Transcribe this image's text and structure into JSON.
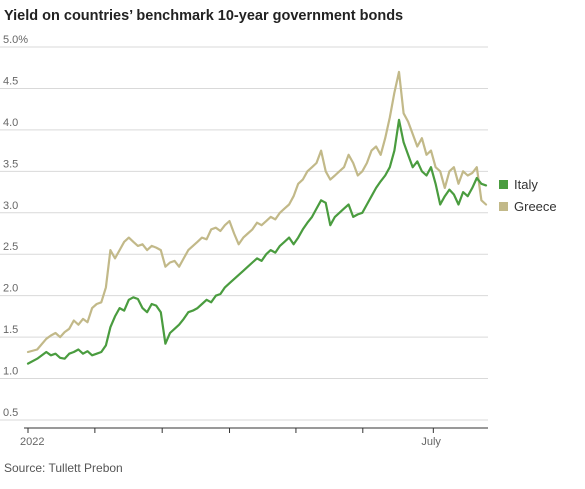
{
  "title": "Yield on countries’ benchmark 10-year government bonds",
  "source": "Source: Tullett Prebon",
  "colors": {
    "italy": "#4a9c3f",
    "greece": "#c2b989",
    "grid": "#d9d9d9",
    "axis": "#333333"
  },
  "chart_data": {
    "type": "line",
    "title": "Yield on countries’ benchmark 10-year government bonds",
    "ylim": [
      0.5,
      5.0
    ],
    "xlim": [
      0,
      100
    ],
    "y_ticks": [
      {
        "value": 5.0,
        "label": "5.0%"
      },
      {
        "value": 4.5,
        "label": "4.5"
      },
      {
        "value": 4.0,
        "label": "4.0"
      },
      {
        "value": 3.5,
        "label": "3.5"
      },
      {
        "value": 3.0,
        "label": "3.0"
      },
      {
        "value": 2.5,
        "label": "2.5"
      },
      {
        "value": 2.0,
        "label": "2.0"
      },
      {
        "value": 1.5,
        "label": "1.5"
      },
      {
        "value": 1.0,
        "label": "1.0"
      },
      {
        "value": 0.5,
        "label": "0.5"
      }
    ],
    "x_ticks": [
      {
        "x": 0,
        "label": "2022"
      },
      {
        "x": 14.6
      },
      {
        "x": 29.3
      },
      {
        "x": 44.0
      },
      {
        "x": 58.5
      },
      {
        "x": 73.1
      },
      {
        "x": 88.5,
        "label": "July"
      }
    ],
    "legend_position": "right",
    "series": [
      {
        "name": "Italy",
        "x": [
          0,
          2,
          4,
          5,
          6,
          7,
          8,
          9,
          10,
          11,
          12,
          13,
          14,
          15,
          16,
          17,
          18,
          19,
          20,
          21,
          22,
          23,
          24,
          25,
          26,
          27,
          28,
          29,
          30,
          31,
          32,
          33,
          34,
          35,
          36,
          37,
          38,
          39,
          40,
          41,
          42,
          43,
          44,
          45,
          46,
          47,
          48,
          49,
          50,
          51,
          52,
          53,
          54,
          55,
          56,
          57,
          58,
          59,
          60,
          61,
          62,
          63,
          64,
          65,
          66,
          67,
          68,
          69,
          70,
          71,
          72,
          73,
          74,
          75,
          76,
          77,
          78,
          79,
          80,
          81,
          82,
          83,
          84,
          85,
          86,
          87,
          88,
          89,
          90,
          91,
          92,
          93,
          94,
          95,
          96,
          97,
          98,
          99,
          100
        ],
        "values": [
          1.18,
          1.24,
          1.32,
          1.28,
          1.3,
          1.25,
          1.24,
          1.3,
          1.32,
          1.35,
          1.3,
          1.33,
          1.28,
          1.3,
          1.32,
          1.4,
          1.62,
          1.75,
          1.85,
          1.82,
          1.95,
          1.98,
          1.96,
          1.85,
          1.8,
          1.9,
          1.88,
          1.8,
          1.42,
          1.55,
          1.6,
          1.65,
          1.72,
          1.8,
          1.82,
          1.85,
          1.9,
          1.95,
          1.92,
          2.0,
          2.02,
          2.1,
          2.15,
          2.2,
          2.25,
          2.3,
          2.35,
          2.4,
          2.45,
          2.42,
          2.5,
          2.55,
          2.52,
          2.6,
          2.65,
          2.7,
          2.62,
          2.7,
          2.8,
          2.88,
          2.95,
          3.05,
          3.15,
          3.12,
          2.85,
          2.95,
          3.0,
          3.05,
          3.1,
          2.95,
          2.98,
          3.0,
          3.1,
          3.2,
          3.3,
          3.38,
          3.45,
          3.55,
          3.75,
          4.12,
          3.85,
          3.7,
          3.55,
          3.62,
          3.5,
          3.45,
          3.55,
          3.35,
          3.1,
          3.2,
          3.28,
          3.22,
          3.1,
          3.25,
          3.2,
          3.3,
          3.42,
          3.35,
          3.33
        ]
      },
      {
        "name": "Greece",
        "x": [
          0,
          2,
          4,
          5,
          6,
          7,
          8,
          9,
          10,
          11,
          12,
          13,
          14,
          15,
          16,
          17,
          18,
          19,
          20,
          21,
          22,
          23,
          24,
          25,
          26,
          27,
          28,
          29,
          30,
          31,
          32,
          33,
          34,
          35,
          36,
          37,
          38,
          39,
          40,
          41,
          42,
          43,
          44,
          45,
          46,
          47,
          48,
          49,
          50,
          51,
          52,
          53,
          54,
          55,
          56,
          57,
          58,
          59,
          60,
          61,
          62,
          63,
          64,
          65,
          66,
          67,
          68,
          69,
          70,
          71,
          72,
          73,
          74,
          75,
          76,
          77,
          78,
          79,
          80,
          81,
          82,
          83,
          84,
          85,
          86,
          87,
          88,
          89,
          90,
          91,
          92,
          93,
          94,
          95,
          96,
          97,
          98,
          99,
          100
        ],
        "values": [
          1.32,
          1.35,
          1.48,
          1.52,
          1.55,
          1.5,
          1.56,
          1.6,
          1.7,
          1.65,
          1.72,
          1.68,
          1.85,
          1.9,
          1.92,
          2.1,
          2.55,
          2.45,
          2.55,
          2.65,
          2.7,
          2.65,
          2.6,
          2.62,
          2.55,
          2.6,
          2.58,
          2.55,
          2.35,
          2.4,
          2.42,
          2.35,
          2.45,
          2.55,
          2.6,
          2.65,
          2.7,
          2.68,
          2.8,
          2.82,
          2.78,
          2.85,
          2.9,
          2.75,
          2.62,
          2.7,
          2.75,
          2.8,
          2.88,
          2.85,
          2.9,
          2.95,
          2.92,
          3.0,
          3.05,
          3.1,
          3.2,
          3.35,
          3.4,
          3.5,
          3.55,
          3.6,
          3.75,
          3.5,
          3.4,
          3.45,
          3.5,
          3.55,
          3.7,
          3.6,
          3.45,
          3.5,
          3.6,
          3.75,
          3.8,
          3.7,
          3.9,
          4.15,
          4.45,
          4.7,
          4.2,
          4.1,
          3.95,
          3.8,
          3.9,
          3.7,
          3.75,
          3.55,
          3.5,
          3.3,
          3.5,
          3.55,
          3.35,
          3.5,
          3.45,
          3.48,
          3.55,
          3.15,
          3.1
        ]
      }
    ]
  }
}
